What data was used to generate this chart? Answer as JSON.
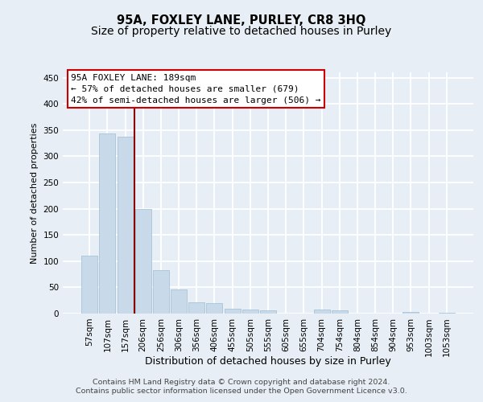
{
  "title": "95A, FOXLEY LANE, PURLEY, CR8 3HQ",
  "subtitle": "Size of property relative to detached houses in Purley",
  "xlabel": "Distribution of detached houses by size in Purley",
  "ylabel": "Number of detached properties",
  "footer_line1": "Contains HM Land Registry data © Crown copyright and database right 2024.",
  "footer_line2": "Contains public sector information licensed under the Open Government Licence v3.0.",
  "bar_labels": [
    "57sqm",
    "107sqm",
    "157sqm",
    "206sqm",
    "256sqm",
    "306sqm",
    "356sqm",
    "406sqm",
    "455sqm",
    "505sqm",
    "555sqm",
    "605sqm",
    "655sqm",
    "704sqm",
    "754sqm",
    "804sqm",
    "854sqm",
    "904sqm",
    "953sqm",
    "1003sqm",
    "1053sqm"
  ],
  "bar_values": [
    110,
    343,
    337,
    200,
    83,
    46,
    22,
    20,
    9,
    7,
    6,
    0,
    0,
    8,
    6,
    0,
    0,
    0,
    3,
    0,
    2
  ],
  "bar_color": "#c8d9ea",
  "bar_edge_color": "#a8c4d8",
  "vline_color": "#8b0000",
  "annotation_text_line1": "95A FOXLEY LANE: 189sqm",
  "annotation_text_line2": "← 57% of detached houses are smaller (679)",
  "annotation_text_line3": "42% of semi-detached houses are larger (506) →",
  "annotation_box_color": "white",
  "annotation_box_edge": "#cc0000",
  "ylim_max": 460,
  "yticks": [
    0,
    50,
    100,
    150,
    200,
    250,
    300,
    350,
    400,
    450
  ],
  "bg_color": "#e8eef5",
  "plot_bg_color": "#e8eef5",
  "grid_color": "white",
  "title_fontsize": 10.5,
  "subtitle_fontsize": 10,
  "xlabel_fontsize": 9,
  "ylabel_fontsize": 8,
  "tick_fontsize": 7.5,
  "annotation_fontsize": 8,
  "footer_fontsize": 6.8
}
